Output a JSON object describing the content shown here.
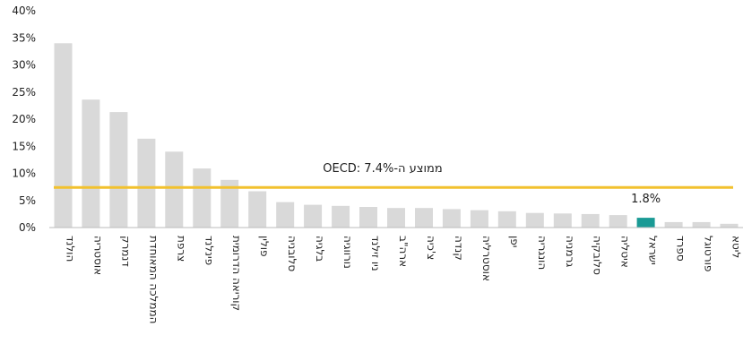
{
  "chart_data": {
    "type": "bar",
    "categories": [
      "הולנד",
      "אוסטריה",
      "דנמרק",
      "הממלכה המאוחדת",
      "צרפת",
      "פינלנד",
      "קוריאה הדרומית",
      "פולין",
      "סלובניה",
      "בלגיה",
      "נורווגיה",
      "ניו זילנד",
      "ארה\"ב",
      "צ'כיה",
      "קנדה",
      "אוסטרליה",
      "יפן",
      "הונגריה",
      "גרמניה",
      "סלובקיה",
      "איטליה",
      "ישראל",
      "ספרד",
      "פורטוגל",
      "ליטא"
    ],
    "values": [
      34.0,
      23.6,
      21.3,
      16.4,
      14.0,
      10.9,
      8.8,
      6.7,
      4.7,
      4.2,
      4.0,
      3.8,
      3.6,
      3.6,
      3.4,
      3.2,
      3.0,
      2.7,
      2.6,
      2.5,
      2.3,
      1.8,
      1.0,
      1.0,
      0.7
    ],
    "highlight_category": "ישראל",
    "highlight_label": "1.8%",
    "reference_line": {
      "value": 7.4,
      "label": "ממוצע ה-OECD: 7.4%"
    },
    "yticks": [
      "0%",
      "5%",
      "10%",
      "15%",
      "20%",
      "25%",
      "30%",
      "35%",
      "40%"
    ],
    "ylim": [
      0,
      40
    ],
    "title": "",
    "xlabel": "",
    "ylabel": "",
    "grid": false,
    "colors": {
      "bar": "#d9d9d9",
      "highlight": "#1a9a95",
      "reference": "#f2c12e"
    }
  }
}
